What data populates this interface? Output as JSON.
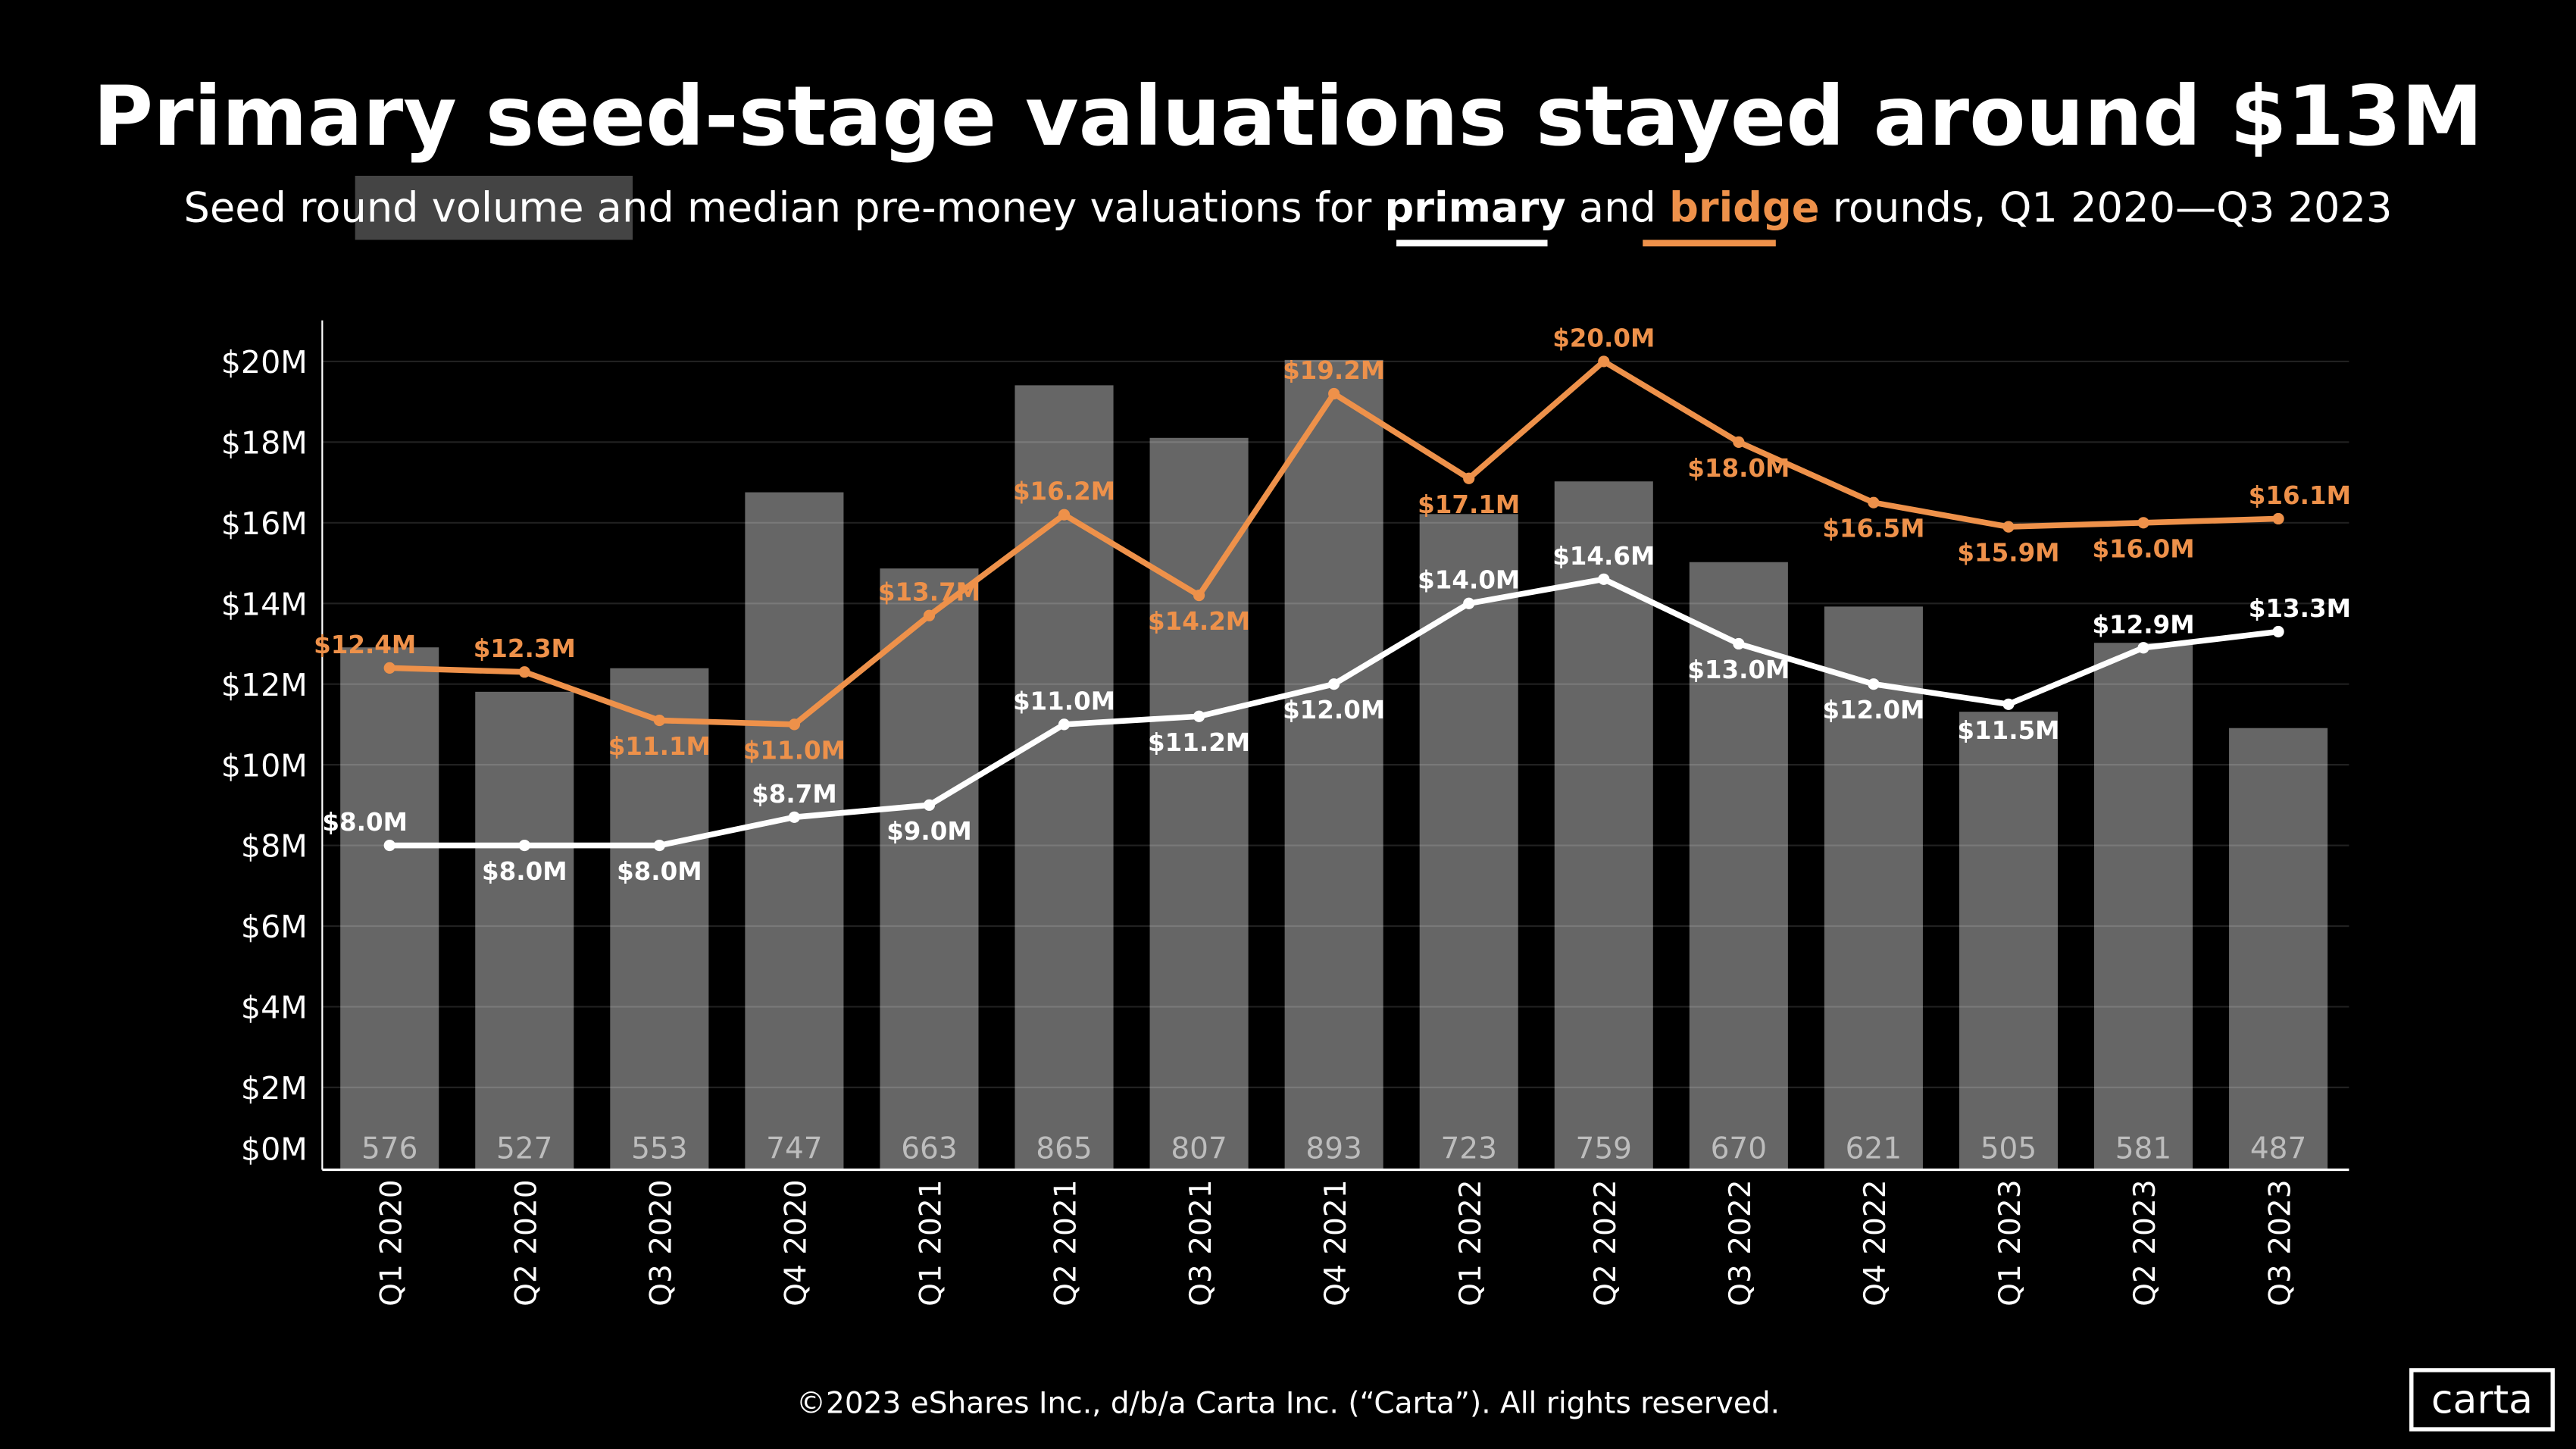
{
  "colors": {
    "primary": "#FFFFFF",
    "bridge": "#EE914A",
    "bars": "#666666",
    "background": "#000000",
    "highlight": "#444444"
  },
  "subtitle": {
    "part1": "Seed",
    "highlight": "round volume",
    "part2": "and median pre-money valuations for",
    "primary": "primary",
    "part3": "and",
    "bridge": "bridge",
    "part4": "rounds, Q1 2020—Q3 2023"
  },
  "footer": "©2023 eShares Inc., d/b/a Carta Inc. (“Carta”). All rights reserved.",
  "logo": "carta",
  "chart_data": {
    "type": "bar+line",
    "title": "Primary seed-stage valuations stayed around $13M",
    "categories": [
      "Q1 2020",
      "Q2 2020",
      "Q3 2020",
      "Q4 2020",
      "Q1 2021",
      "Q2 2021",
      "Q3 2021",
      "Q4 2021",
      "Q1 2022",
      "Q2 2022",
      "Q3 2022",
      "Q4 2022",
      "Q1 2023",
      "Q2 2023",
      "Q3 2023"
    ],
    "bars": {
      "name": "round volume",
      "values": [
        576,
        527,
        553,
        747,
        663,
        865,
        807,
        893,
        723,
        759,
        670,
        621,
        505,
        581,
        487
      ]
    },
    "series": [
      {
        "name": "primary",
        "values": [
          8.0,
          8.0,
          8.0,
          8.7,
          9.0,
          11.0,
          11.2,
          12.0,
          14.0,
          14.6,
          13.0,
          12.0,
          11.5,
          12.9,
          13.3
        ],
        "labels": [
          "$8.0M",
          "$8.0M",
          "$8.0M",
          "$8.7M",
          "$9.0M",
          "$11.0M",
          "$11.2M",
          "$12.0M",
          "$14.0M",
          "$14.6M",
          "$13.0M",
          "$12.0M",
          "$11.5M",
          "$12.9M",
          "$13.3M"
        ]
      },
      {
        "name": "bridge",
        "values": [
          12.4,
          12.3,
          11.1,
          11.0,
          13.7,
          16.2,
          14.2,
          19.2,
          17.1,
          20.0,
          18.0,
          16.5,
          15.9,
          16.0,
          16.1
        ],
        "labels": [
          "$12.4M",
          "$12.3M",
          "$11.1M",
          "$11.0M",
          "$13.7M",
          "$16.2M",
          "$14.2M",
          "$19.2M",
          "$17.1M",
          "$20.0M",
          "$18.0M",
          "$16.5M",
          "$15.9M",
          "$16.0M",
          "$16.1M"
        ]
      }
    ],
    "yticks": [
      "$0M",
      "$2M",
      "$4M",
      "$6M",
      "$8M",
      "$10M",
      "$12M",
      "$14M",
      "$16M",
      "$18M",
      "$20M"
    ],
    "ylim": [
      0,
      20
    ],
    "grid": true
  }
}
